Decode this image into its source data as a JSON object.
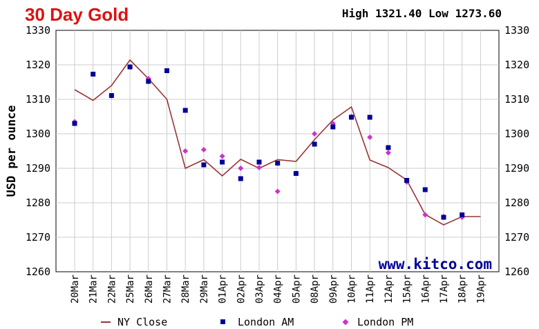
{
  "header": {
    "title": "30 Day Gold",
    "high_low": "High 1321.40 Low 1273.60"
  },
  "watermark": "www.kitco.com",
  "chart_data": {
    "type": "line",
    "title": "30 Day Gold",
    "ylabel": "USD per ounce",
    "xlabel": "",
    "ylim": [
      1260,
      1330
    ],
    "yticks": [
      1260,
      1270,
      1280,
      1290,
      1300,
      1310,
      1320,
      1330
    ],
    "grid": true,
    "legend_position": "bottom",
    "categories": [
      "20Mar",
      "21Mar",
      "22Mar",
      "25Mar",
      "26Mar",
      "27Mar",
      "28Mar",
      "29Mar",
      "01Apr",
      "02Apr",
      "03Apr",
      "04Apr",
      "05Apr",
      "08Apr",
      "09Apr",
      "10Apr",
      "11Apr",
      "12Apr",
      "15Apr",
      "16Apr",
      "17Apr",
      "18Apr",
      "19Apr"
    ],
    "colors": {
      "ny_close": "#993333",
      "london_am": "#000099",
      "london_pm": "#cc33cc",
      "grid": "#cccccc",
      "title": "#dd1111"
    },
    "series": [
      {
        "name": "NY Close",
        "values": [
          1312.8,
          1309.7,
          1314.0,
          1321.4,
          1316.0,
          1310.0,
          1290.0,
          1292.5,
          1287.8,
          1292.6,
          1290.0,
          1292.5,
          1292.0,
          1298.3,
          1304.0,
          1307.8,
          1292.4,
          1290.2,
          1286.6,
          1276.6,
          1273.6,
          1276.0,
          1276.0
        ]
      },
      {
        "name": "London AM",
        "values": [
          1303.0,
          1317.3,
          1311.1,
          1319.4,
          1315.2,
          1318.3,
          1306.8,
          1291.0,
          1291.8,
          1287.0,
          1291.8,
          1291.5,
          1288.5,
          1297.0,
          1302.0,
          1304.8,
          1304.8,
          1296.0,
          1286.5,
          1283.8,
          1275.8,
          1276.5,
          null
        ]
      },
      {
        "name": "London PM",
        "values": [
          1303.5,
          null,
          1311.0,
          1319.4,
          1316.0,
          null,
          1295.0,
          1295.4,
          1293.5,
          1290.0,
          1290.2,
          1283.3,
          1288.5,
          1300.0,
          1303.0,
          1305.0,
          1299.0,
          1294.5,
          1286.0,
          1276.5,
          1276.0,
          1275.8,
          null
        ]
      }
    ]
  }
}
